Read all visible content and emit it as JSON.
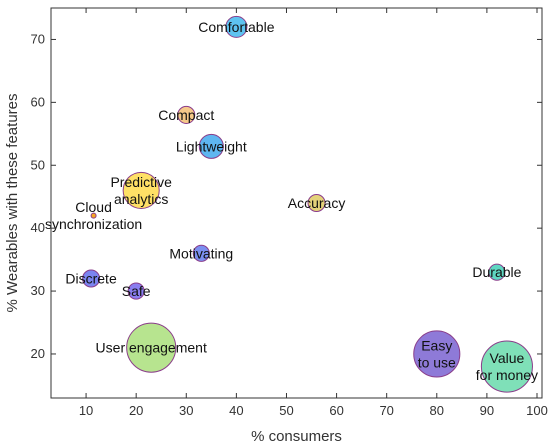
{
  "chart_data": {
    "type": "scatter",
    "subtype": "bubble",
    "title": "",
    "xlabel": "% consumers",
    "ylabel": "% Wearables with these features",
    "xlim": [
      3,
      101
    ],
    "ylim": [
      13,
      75
    ],
    "xticks": [
      10,
      20,
      30,
      40,
      50,
      60,
      70,
      80,
      90,
      100
    ],
    "yticks": [
      20,
      30,
      40,
      50,
      60,
      70
    ],
    "grid": false,
    "points": [
      {
        "label": "Comfortable",
        "x": 40,
        "y": 72,
        "r": 2.1,
        "color": "#5ec3f0"
      },
      {
        "label": "Compact",
        "x": 30,
        "y": 58,
        "r": 1.7,
        "color": "#f6c98a"
      },
      {
        "label": "Lightweight",
        "x": 35,
        "y": 53,
        "r": 2.4,
        "color": "#5eb6f0"
      },
      {
        "label": "Predictive analytics",
        "label_lines": [
          "Predictive",
          "analytics"
        ],
        "x": 21,
        "y": 46,
        "r": 3.6,
        "color": "#ffe066"
      },
      {
        "label": "Cloud synchronization",
        "label_lines": [
          "Cloud",
          "synchronization"
        ],
        "x": 11.5,
        "y": 42,
        "r": 0.3,
        "color": "#f6a623"
      },
      {
        "label": "Accuracy",
        "x": 56,
        "y": 44,
        "r": 1.7,
        "color": "#e4d27a"
      },
      {
        "label": "Motivating",
        "x": 33,
        "y": 36,
        "r": 1.6,
        "color": "#7b8ff0"
      },
      {
        "label": "Discrete",
        "x": 11,
        "y": 32,
        "r": 1.7,
        "color": "#7b84f0"
      },
      {
        "label": "Safe",
        "x": 20,
        "y": 30,
        "r": 1.6,
        "color": "#8a7ef0"
      },
      {
        "label": "Durable",
        "x": 92,
        "y": 33,
        "r": 1.6,
        "color": "#5fd6c2"
      },
      {
        "label": "User engagement",
        "x": 23,
        "y": 21,
        "r": 4.9,
        "color": "#b7e48f"
      },
      {
        "label": "Easy to use",
        "label_lines": [
          "Easy",
          "to use"
        ],
        "x": 80,
        "y": 20,
        "r": 4.6,
        "color": "#8e7ad8"
      },
      {
        "label": "Value for money",
        "label_lines": [
          "Value",
          "for money"
        ],
        "x": 94,
        "y": 18,
        "r": 5.1,
        "color": "#7fe0b8"
      }
    ]
  }
}
